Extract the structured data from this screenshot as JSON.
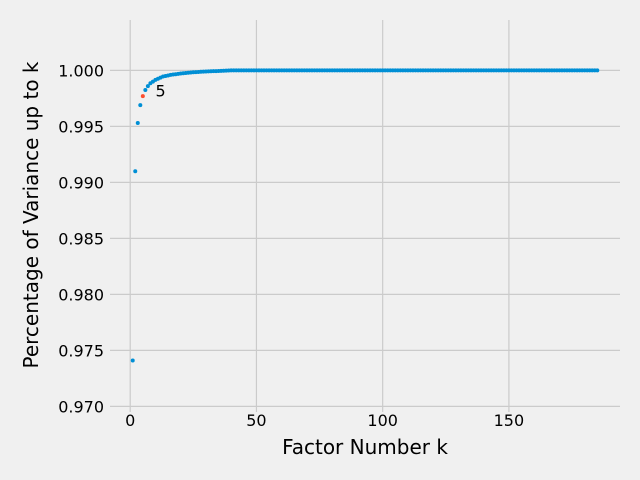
{
  "chart_data": {
    "type": "scatter",
    "title": "",
    "xlabel": "Factor Number k",
    "ylabel": "Percentage of Variance up to k",
    "xlim": [
      -8,
      194
    ],
    "ylim": [
      0.9695,
      1.0045
    ],
    "xticks": [
      0,
      50,
      100,
      150
    ],
    "xtick_labels": [
      "0",
      "50",
      "100",
      "150"
    ],
    "yticks": [
      0.97,
      0.975,
      0.98,
      0.985,
      0.99,
      0.995,
      1.0
    ],
    "ytick_labels": [
      "0.970",
      "0.975",
      "0.980",
      "0.985",
      "0.990",
      "0.995",
      "1.000"
    ],
    "grid": true,
    "point_color": "#008fd5",
    "highlight_color": "#fc4f30",
    "highlight_index": 4,
    "annotation": {
      "text": "5",
      "x": 10,
      "y": 0.9982
    },
    "series": [
      {
        "values": [
          [
            1,
            0.9741
          ],
          [
            2,
            0.991
          ],
          [
            3,
            0.9953
          ],
          [
            4,
            0.9969
          ],
          [
            5,
            0.9977
          ],
          [
            6,
            0.99825
          ],
          [
            7,
            0.9986
          ],
          [
            8,
            0.99885
          ],
          [
            9,
            0.999
          ],
          [
            10,
            0.99915
          ],
          [
            11,
            0.99925
          ],
          [
            12,
            0.99935
          ],
          [
            13,
            0.99945
          ],
          [
            14,
            0.9995
          ],
          [
            15,
            0.99955
          ],
          [
            16,
            0.9996
          ],
          [
            17,
            0.99963
          ],
          [
            18,
            0.99966
          ],
          [
            19,
            0.99969
          ],
          [
            20,
            0.99972
          ],
          [
            21,
            0.99975
          ],
          [
            22,
            0.99977
          ],
          [
            23,
            0.99979
          ],
          [
            24,
            0.99981
          ],
          [
            25,
            0.99983
          ],
          [
            26,
            0.99985
          ],
          [
            27,
            0.99986
          ],
          [
            28,
            0.99988
          ],
          [
            29,
            0.99989
          ],
          [
            30,
            0.9999
          ],
          [
            31,
            0.99991
          ],
          [
            32,
            0.99992
          ],
          [
            33,
            0.99993
          ],
          [
            34,
            0.99994
          ],
          [
            35,
            0.99995
          ],
          [
            36,
            0.99996
          ],
          [
            37,
            0.99997
          ],
          [
            38,
            0.99998
          ],
          [
            39,
            0.99999
          ],
          [
            40,
            1.0
          ],
          [
            41,
            1.0
          ],
          [
            42,
            1.0
          ],
          [
            43,
            1.0
          ],
          [
            44,
            1.0
          ],
          [
            45,
            1.0
          ],
          [
            46,
            1.0
          ],
          [
            47,
            1.0
          ],
          [
            48,
            1.0
          ],
          [
            49,
            1.0
          ],
          [
            50,
            1.0
          ],
          [
            51,
            1.0
          ],
          [
            52,
            1.0
          ],
          [
            53,
            1.0
          ],
          [
            54,
            1.0
          ],
          [
            55,
            1.0
          ],
          [
            56,
            1.0
          ],
          [
            57,
            1.0
          ],
          [
            58,
            1.0
          ],
          [
            59,
            1.0
          ],
          [
            60,
            1.0
          ],
          [
            61,
            1.0
          ],
          [
            62,
            1.0
          ],
          [
            63,
            1.0
          ],
          [
            64,
            1.0
          ],
          [
            65,
            1.0
          ],
          [
            66,
            1.0
          ],
          [
            67,
            1.0
          ],
          [
            68,
            1.0
          ],
          [
            69,
            1.0
          ],
          [
            70,
            1.0
          ],
          [
            71,
            1.0
          ],
          [
            72,
            1.0
          ],
          [
            73,
            1.0
          ],
          [
            74,
            1.0
          ],
          [
            75,
            1.0
          ],
          [
            76,
            1.0
          ],
          [
            77,
            1.0
          ],
          [
            78,
            1.0
          ],
          [
            79,
            1.0
          ],
          [
            80,
            1.0
          ],
          [
            81,
            1.0
          ],
          [
            82,
            1.0
          ],
          [
            83,
            1.0
          ],
          [
            84,
            1.0
          ],
          [
            85,
            1.0
          ],
          [
            86,
            1.0
          ],
          [
            87,
            1.0
          ],
          [
            88,
            1.0
          ],
          [
            89,
            1.0
          ],
          [
            90,
            1.0
          ],
          [
            91,
            1.0
          ],
          [
            92,
            1.0
          ],
          [
            93,
            1.0
          ],
          [
            94,
            1.0
          ],
          [
            95,
            1.0
          ],
          [
            96,
            1.0
          ],
          [
            97,
            1.0
          ],
          [
            98,
            1.0
          ],
          [
            99,
            1.0
          ],
          [
            100,
            1.0
          ],
          [
            101,
            1.0
          ],
          [
            102,
            1.0
          ],
          [
            103,
            1.0
          ],
          [
            104,
            1.0
          ],
          [
            105,
            1.0
          ],
          [
            106,
            1.0
          ],
          [
            107,
            1.0
          ],
          [
            108,
            1.0
          ],
          [
            109,
            1.0
          ],
          [
            110,
            1.0
          ],
          [
            111,
            1.0
          ],
          [
            112,
            1.0
          ],
          [
            113,
            1.0
          ],
          [
            114,
            1.0
          ],
          [
            115,
            1.0
          ],
          [
            116,
            1.0
          ],
          [
            117,
            1.0
          ],
          [
            118,
            1.0
          ],
          [
            119,
            1.0
          ],
          [
            120,
            1.0
          ],
          [
            121,
            1.0
          ],
          [
            122,
            1.0
          ],
          [
            123,
            1.0
          ],
          [
            124,
            1.0
          ],
          [
            125,
            1.0
          ],
          [
            126,
            1.0
          ],
          [
            127,
            1.0
          ],
          [
            128,
            1.0
          ],
          [
            129,
            1.0
          ],
          [
            130,
            1.0
          ],
          [
            131,
            1.0
          ],
          [
            132,
            1.0
          ],
          [
            133,
            1.0
          ],
          [
            134,
            1.0
          ],
          [
            135,
            1.0
          ],
          [
            136,
            1.0
          ],
          [
            137,
            1.0
          ],
          [
            138,
            1.0
          ],
          [
            139,
            1.0
          ],
          [
            140,
            1.0
          ],
          [
            141,
            1.0
          ],
          [
            142,
            1.0
          ],
          [
            143,
            1.0
          ],
          [
            144,
            1.0
          ],
          [
            145,
            1.0
          ],
          [
            146,
            1.0
          ],
          [
            147,
            1.0
          ],
          [
            148,
            1.0
          ],
          [
            149,
            1.0
          ],
          [
            150,
            1.0
          ],
          [
            151,
            1.0
          ],
          [
            152,
            1.0
          ],
          [
            153,
            1.0
          ],
          [
            154,
            1.0
          ],
          [
            155,
            1.0
          ],
          [
            156,
            1.0
          ],
          [
            157,
            1.0
          ],
          [
            158,
            1.0
          ],
          [
            159,
            1.0
          ],
          [
            160,
            1.0
          ],
          [
            161,
            1.0
          ],
          [
            162,
            1.0
          ],
          [
            163,
            1.0
          ],
          [
            164,
            1.0
          ],
          [
            165,
            1.0
          ],
          [
            166,
            1.0
          ],
          [
            167,
            1.0
          ],
          [
            168,
            1.0
          ],
          [
            169,
            1.0
          ],
          [
            170,
            1.0
          ],
          [
            171,
            1.0
          ],
          [
            172,
            1.0
          ],
          [
            173,
            1.0
          ],
          [
            174,
            1.0
          ],
          [
            175,
            1.0
          ],
          [
            176,
            1.0
          ],
          [
            177,
            1.0
          ],
          [
            178,
            1.0
          ],
          [
            179,
            1.0
          ],
          [
            180,
            1.0
          ],
          [
            181,
            1.0
          ],
          [
            182,
            1.0
          ],
          [
            183,
            1.0
          ],
          [
            184,
            1.0
          ],
          [
            185,
            1.0
          ]
        ]
      }
    ]
  }
}
